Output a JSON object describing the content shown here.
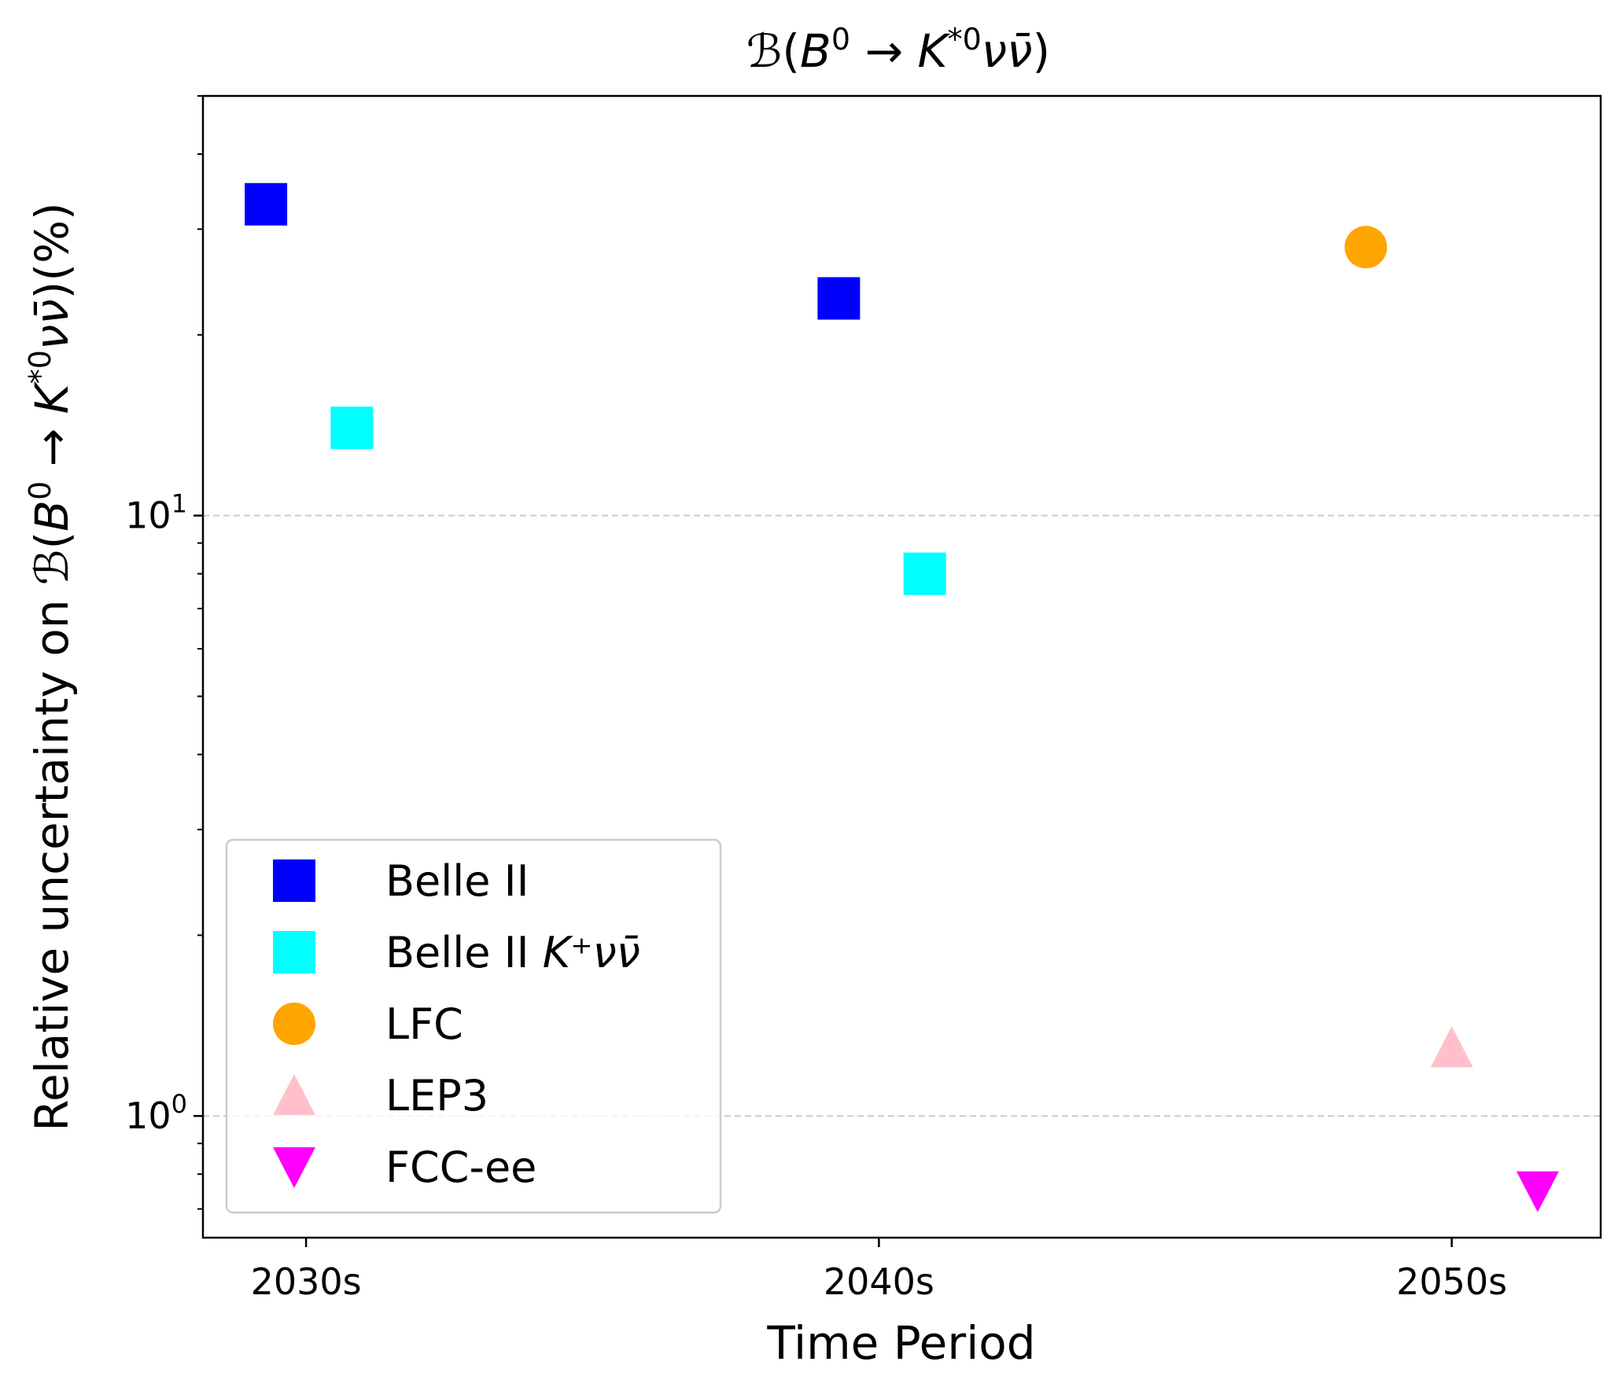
{
  "chart_data": {
    "type": "scatter",
    "title": "ℬ(B⁰ → K*⁰νν̄)",
    "xlabel": "Time Period",
    "ylabel": "Relative uncertainty on ℬ(B⁰ → K*⁰νν̄)(%)",
    "x_categories": [
      "2030s",
      "2040s",
      "2050s"
    ],
    "xlim": [
      2028.2,
      2052.6
    ],
    "y_scale": "log",
    "ylim": [
      0.627,
      50
    ],
    "y_ticks": [
      {
        "value": 1,
        "base": "10",
        "exp": "0"
      },
      {
        "value": 10,
        "base": "10",
        "exp": "1"
      }
    ],
    "grid": "horizontal dashed at major y ticks",
    "legend_position": "lower-left",
    "series": [
      {
        "name": "Belle II",
        "marker": "square",
        "color": "#0000ff",
        "points": [
          {
            "x": 2029.3,
            "y": 33
          },
          {
            "x": 2039.3,
            "y": 23
          }
        ]
      },
      {
        "name": "Belle II K⁺νν̄",
        "marker": "square",
        "color": "#00ffff",
        "points": [
          {
            "x": 2030.8,
            "y": 14
          },
          {
            "x": 2040.8,
            "y": 8
          }
        ]
      },
      {
        "name": "LFC",
        "marker": "circle",
        "color": "#ffa500",
        "points": [
          {
            "x": 2048.5,
            "y": 28
          }
        ]
      },
      {
        "name": "LEP3",
        "marker": "triangle-up",
        "color": "#ffc0cb",
        "points": [
          {
            "x": 2050.0,
            "y": 1.3
          }
        ]
      },
      {
        "name": "FCC-ee",
        "marker": "triangle-down",
        "color": "#ff00ff",
        "points": [
          {
            "x": 2051.5,
            "y": 0.75
          }
        ]
      }
    ]
  }
}
